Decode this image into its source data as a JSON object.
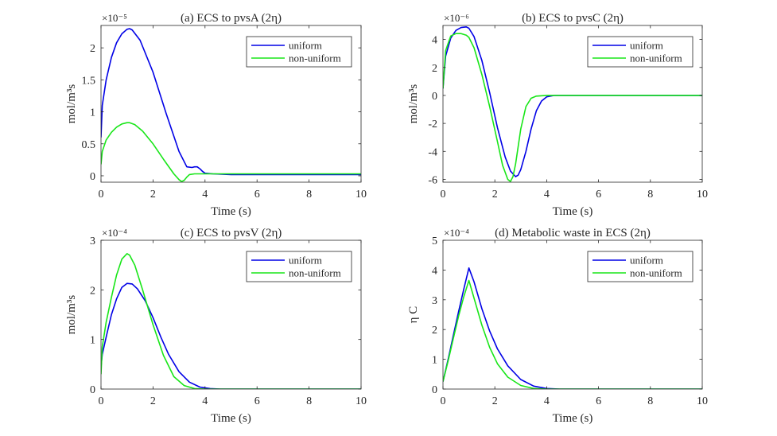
{
  "figure": {
    "series_colors": {
      "uniform": "#0000e6",
      "non-uniform": "#19e619"
    }
  },
  "chart_data": [
    {
      "type": "line",
      "title": "(a) ECS to pvsA (2η)",
      "xlabel": "Time (s)",
      "ylabel": "mol/m³s",
      "exponent_label": "×10⁻⁵",
      "xlim": [
        0,
        10
      ],
      "ylim": [
        -0.1,
        2.35
      ],
      "xticks": [
        0,
        2,
        4,
        6,
        8,
        10
      ],
      "yticks": [
        0,
        0.5,
        1,
        1.5,
        2
      ],
      "ytick_labels": [
        "0",
        "0.5",
        "1",
        "1.5",
        "2"
      ],
      "legend": "top-right",
      "series": [
        {
          "name": "uniform",
          "color": "#0000e6",
          "x": [
            0,
            0.05,
            0.2,
            0.4,
            0.6,
            0.8,
            1.0,
            1.1,
            1.2,
            1.5,
            2.0,
            2.5,
            3.0,
            3.3,
            3.5,
            3.6,
            3.7,
            3.8,
            3.9,
            4.0,
            4.3,
            5,
            6,
            8,
            10
          ],
          "y": [
            0.6,
            1.1,
            1.5,
            1.85,
            2.08,
            2.22,
            2.29,
            2.3,
            2.28,
            2.12,
            1.62,
            0.98,
            0.38,
            0.14,
            0.13,
            0.14,
            0.14,
            0.11,
            0.07,
            0.04,
            0.03,
            0.02,
            0.02,
            0.02,
            0.02
          ]
        },
        {
          "name": "non-uniform",
          "color": "#19e619",
          "x": [
            0,
            0.05,
            0.2,
            0.4,
            0.6,
            0.8,
            1.0,
            1.1,
            1.3,
            1.6,
            2.0,
            2.4,
            2.8,
            3.0,
            3.1,
            3.2,
            3.3,
            3.4,
            3.6,
            4.0,
            5,
            6,
            8,
            10
          ],
          "y": [
            0.18,
            0.38,
            0.56,
            0.68,
            0.76,
            0.81,
            0.83,
            0.83,
            0.8,
            0.7,
            0.5,
            0.26,
            0.03,
            -0.06,
            -0.09,
            -0.07,
            -0.02,
            0.02,
            0.03,
            0.03,
            0.03,
            0.03,
            0.03,
            0.03
          ]
        }
      ]
    },
    {
      "type": "line",
      "title": "(b) ECS to pvsC (2η)",
      "xlabel": "Time (s)",
      "ylabel": "mol/m³s",
      "exponent_label": "×10⁻⁶",
      "xlim": [
        0,
        10
      ],
      "ylim": [
        -6.2,
        5
      ],
      "xticks": [
        0,
        2,
        4,
        6,
        8,
        10
      ],
      "yticks": [
        -6,
        -4,
        -2,
        0,
        2,
        4
      ],
      "ytick_labels": [
        "-6",
        "-4",
        "-2",
        "0",
        "2",
        "4"
      ],
      "legend": "top-right",
      "series": [
        {
          "name": "uniform",
          "color": "#0000e6",
          "x": [
            0,
            0.1,
            0.3,
            0.5,
            0.7,
            0.9,
            1.0,
            1.2,
            1.5,
            1.8,
            2.1,
            2.4,
            2.6,
            2.8,
            2.9,
            3.0,
            3.2,
            3.4,
            3.6,
            3.8,
            4.0,
            4.3,
            5,
            6,
            8,
            10
          ],
          "y": [
            0.5,
            2.8,
            4.1,
            4.65,
            4.85,
            4.9,
            4.8,
            4.2,
            2.5,
            0.2,
            -2.3,
            -4.4,
            -5.4,
            -5.8,
            -5.7,
            -5.3,
            -4.0,
            -2.4,
            -1.1,
            -0.4,
            -0.1,
            0,
            0,
            0,
            0,
            0
          ]
        },
        {
          "name": "non-uniform",
          "color": "#19e619",
          "x": [
            0,
            0.1,
            0.3,
            0.5,
            0.7,
            0.9,
            1.0,
            1.2,
            1.5,
            1.8,
            2.1,
            2.3,
            2.5,
            2.6,
            2.7,
            2.8,
            3.0,
            3.2,
            3.4,
            3.6,
            4.0,
            5,
            6,
            8,
            10
          ],
          "y": [
            0.5,
            3.2,
            4.25,
            4.42,
            4.42,
            4.3,
            4.15,
            3.4,
            1.5,
            -0.8,
            -3.3,
            -5.0,
            -6.0,
            -6.15,
            -5.8,
            -4.9,
            -2.4,
            -0.8,
            -0.2,
            -0.05,
            0,
            0,
            0,
            0,
            0
          ]
        }
      ]
    },
    {
      "type": "line",
      "title": "(c) ECS to pvsV (2η)",
      "xlabel": "Time (s)",
      "ylabel": "mol/m³s",
      "exponent_label": "×10⁻⁴",
      "xlim": [
        0,
        10
      ],
      "ylim": [
        0,
        3
      ],
      "xticks": [
        0,
        2,
        4,
        6,
        8,
        10
      ],
      "yticks": [
        0,
        1,
        2,
        3
      ],
      "ytick_labels": [
        "0",
        "1",
        "2",
        "3"
      ],
      "legend": "top-right",
      "series": [
        {
          "name": "uniform",
          "color": "#0000e6",
          "x": [
            0,
            0.05,
            0.2,
            0.4,
            0.6,
            0.8,
            1.0,
            1.2,
            1.4,
            1.7,
            2.0,
            2.3,
            2.6,
            3.0,
            3.4,
            3.8,
            4.2,
            4.6,
            5,
            6,
            8,
            10
          ],
          "y": [
            0.45,
            0.7,
            1.05,
            1.5,
            1.82,
            2.05,
            2.13,
            2.12,
            2.02,
            1.78,
            1.44,
            1.05,
            0.7,
            0.35,
            0.14,
            0.04,
            0.01,
            0,
            0,
            0,
            0,
            0
          ]
        },
        {
          "name": "non-uniform",
          "color": "#19e619",
          "x": [
            0,
            0.05,
            0.2,
            0.4,
            0.6,
            0.8,
            1.0,
            1.1,
            1.3,
            1.6,
            2.0,
            2.4,
            2.8,
            3.2,
            3.6,
            4.0,
            4.5,
            5,
            6,
            8,
            10
          ],
          "y": [
            0.3,
            0.85,
            1.35,
            1.85,
            2.3,
            2.62,
            2.73,
            2.7,
            2.5,
            2.0,
            1.3,
            0.68,
            0.25,
            0.07,
            0.01,
            0,
            0,
            0,
            0,
            0,
            0
          ]
        }
      ]
    },
    {
      "type": "line",
      "title": "(d) Metabolic waste in ECS (2η)",
      "xlabel": "Time (s)",
      "ylabel": "η C",
      "exponent_label": "×10⁻⁴",
      "xlim": [
        0,
        10
      ],
      "ylim": [
        0,
        5
      ],
      "xticks": [
        0,
        2,
        4,
        6,
        8,
        10
      ],
      "yticks": [
        0,
        1,
        2,
        3,
        4,
        5
      ],
      "ytick_labels": [
        "0",
        "1",
        "2",
        "3",
        "4",
        "5"
      ],
      "legend": "top-right",
      "series": [
        {
          "name": "uniform",
          "color": "#0000e6",
          "x": [
            0,
            0.2,
            0.4,
            0.6,
            0.8,
            1.0,
            1.2,
            1.5,
            1.8,
            2.1,
            2.5,
            3.0,
            3.5,
            4.0,
            4.5,
            5,
            6,
            8,
            10
          ],
          "y": [
            0.25,
            1.0,
            1.8,
            2.6,
            3.35,
            4.07,
            3.6,
            2.7,
            1.95,
            1.35,
            0.78,
            0.32,
            0.1,
            0.02,
            0,
            0,
            0,
            0,
            0
          ]
        },
        {
          "name": "non-uniform",
          "color": "#19e619",
          "x": [
            0,
            0.2,
            0.4,
            0.6,
            0.8,
            1.0,
            1.2,
            1.5,
            1.8,
            2.1,
            2.5,
            3.0,
            3.5,
            4.0,
            5,
            6,
            8,
            10
          ],
          "y": [
            0.25,
            0.95,
            1.7,
            2.45,
            3.1,
            3.65,
            3.05,
            2.15,
            1.4,
            0.85,
            0.4,
            0.12,
            0.02,
            0,
            0,
            0,
            0,
            0
          ]
        }
      ]
    }
  ]
}
